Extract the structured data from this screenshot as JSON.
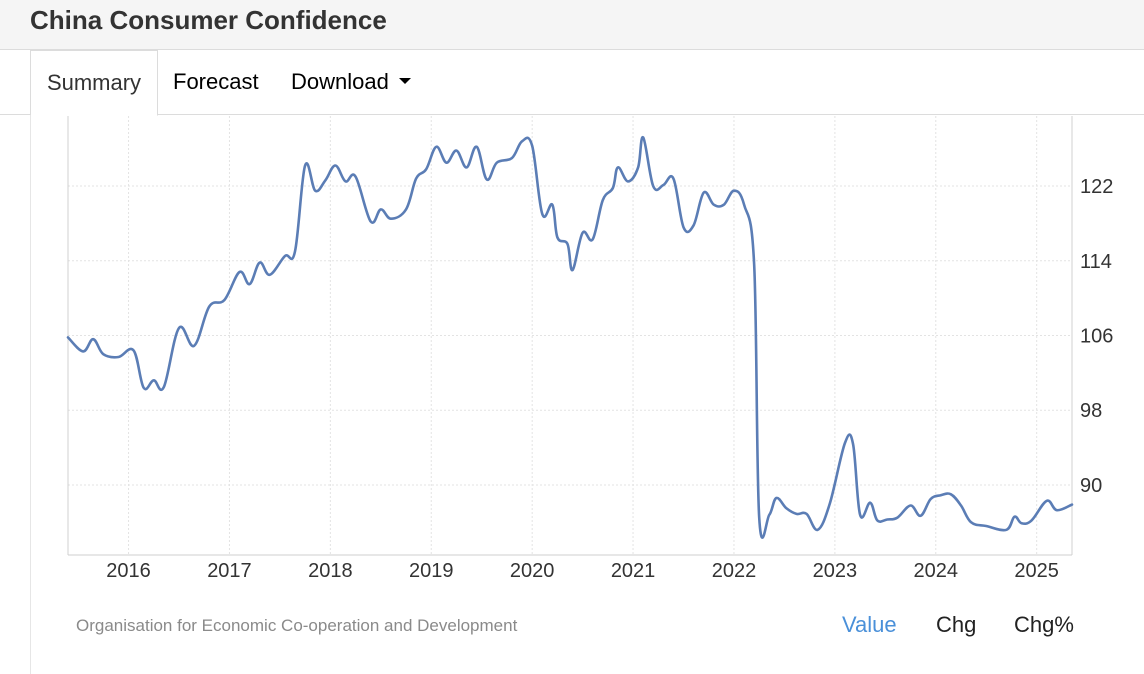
{
  "page": {
    "title": "China Consumer Confidence"
  },
  "tabs": {
    "summary": "Summary",
    "forecast": "Forecast",
    "download": "Download"
  },
  "source": "Organisation for Economic Co-operation and Development",
  "metrics": {
    "value": "Value",
    "chg": "Chg",
    "chg_pct": "Chg%"
  },
  "colors": {
    "line": "#5b7db5",
    "grid": "#e3e3e3",
    "active_metric": "#4a90d9"
  },
  "chart_data": {
    "type": "line",
    "title": "",
    "xlabel": "",
    "ylabel": "",
    "x_ticks": [
      "2016",
      "2017",
      "2018",
      "2019",
      "2020",
      "2021",
      "2022",
      "2023",
      "2024",
      "2025"
    ],
    "y_ticks": [
      90,
      98,
      106,
      114,
      122
    ],
    "xlim": [
      2015.4,
      2025.35
    ],
    "ylim": [
      82.5,
      129.5
    ],
    "grid": true,
    "y_axis_side": "right",
    "series": [
      {
        "values": [
          [
            2015.4,
            105.8
          ],
          [
            2015.55,
            104.3
          ],
          [
            2015.65,
            105.6
          ],
          [
            2015.75,
            104.0
          ],
          [
            2015.9,
            103.7
          ],
          [
            2016.05,
            104.4
          ],
          [
            2016.15,
            100.4
          ],
          [
            2016.25,
            101.2
          ],
          [
            2016.35,
            100.5
          ],
          [
            2016.5,
            106.8
          ],
          [
            2016.65,
            104.9
          ],
          [
            2016.8,
            109.1
          ],
          [
            2016.95,
            109.8
          ],
          [
            2017.1,
            112.8
          ],
          [
            2017.2,
            111.5
          ],
          [
            2017.3,
            113.8
          ],
          [
            2017.4,
            112.5
          ],
          [
            2017.55,
            114.5
          ],
          [
            2017.65,
            115.0
          ],
          [
            2017.75,
            124.2
          ],
          [
            2017.85,
            121.5
          ],
          [
            2017.95,
            122.6
          ],
          [
            2018.05,
            124.2
          ],
          [
            2018.15,
            122.5
          ],
          [
            2018.25,
            123.0
          ],
          [
            2018.4,
            118.2
          ],
          [
            2018.5,
            119.5
          ],
          [
            2018.6,
            118.5
          ],
          [
            2018.75,
            119.5
          ],
          [
            2018.85,
            122.8
          ],
          [
            2018.95,
            123.8
          ],
          [
            2019.05,
            126.2
          ],
          [
            2019.15,
            124.5
          ],
          [
            2019.25,
            125.8
          ],
          [
            2019.35,
            124.0
          ],
          [
            2019.45,
            126.2
          ],
          [
            2019.55,
            122.7
          ],
          [
            2019.65,
            124.5
          ],
          [
            2019.8,
            125.0
          ],
          [
            2019.9,
            126.8
          ],
          [
            2020.0,
            126.3
          ],
          [
            2020.1,
            119.0
          ],
          [
            2020.2,
            120.0
          ],
          [
            2020.25,
            116.5
          ],
          [
            2020.35,
            115.8
          ],
          [
            2020.4,
            113.0
          ],
          [
            2020.5,
            117.0
          ],
          [
            2020.6,
            116.3
          ],
          [
            2020.7,
            120.5
          ],
          [
            2020.8,
            121.8
          ],
          [
            2020.85,
            124.0
          ],
          [
            2020.95,
            122.5
          ],
          [
            2021.05,
            124.0
          ],
          [
            2021.1,
            127.2
          ],
          [
            2021.2,
            122.0
          ],
          [
            2021.3,
            122.1
          ],
          [
            2021.4,
            122.8
          ],
          [
            2021.5,
            117.6
          ],
          [
            2021.6,
            117.8
          ],
          [
            2021.7,
            121.3
          ],
          [
            2021.8,
            120.0
          ],
          [
            2021.9,
            120.0
          ],
          [
            2022.0,
            121.5
          ],
          [
            2022.1,
            120.0
          ],
          [
            2022.2,
            113.5
          ],
          [
            2022.25,
            86.5
          ],
          [
            2022.35,
            86.8
          ],
          [
            2022.42,
            88.6
          ],
          [
            2022.52,
            87.5
          ],
          [
            2022.62,
            86.9
          ],
          [
            2022.72,
            86.9
          ],
          [
            2022.83,
            85.2
          ],
          [
            2022.95,
            88.0
          ],
          [
            2023.1,
            94.5
          ],
          [
            2023.18,
            94.4
          ],
          [
            2023.25,
            86.8
          ],
          [
            2023.35,
            88.1
          ],
          [
            2023.42,
            86.2
          ],
          [
            2023.52,
            86.3
          ],
          [
            2023.62,
            86.5
          ],
          [
            2023.75,
            87.8
          ],
          [
            2023.85,
            86.7
          ],
          [
            2023.95,
            88.5
          ],
          [
            2024.05,
            88.9
          ],
          [
            2024.15,
            89.0
          ],
          [
            2024.25,
            87.8
          ],
          [
            2024.35,
            86.0
          ],
          [
            2024.5,
            85.6
          ],
          [
            2024.7,
            85.2
          ],
          [
            2024.78,
            86.6
          ],
          [
            2024.85,
            85.9
          ],
          [
            2024.95,
            86.2
          ],
          [
            2025.1,
            88.3
          ],
          [
            2025.2,
            87.3
          ],
          [
            2025.35,
            87.9
          ]
        ]
      }
    ]
  }
}
